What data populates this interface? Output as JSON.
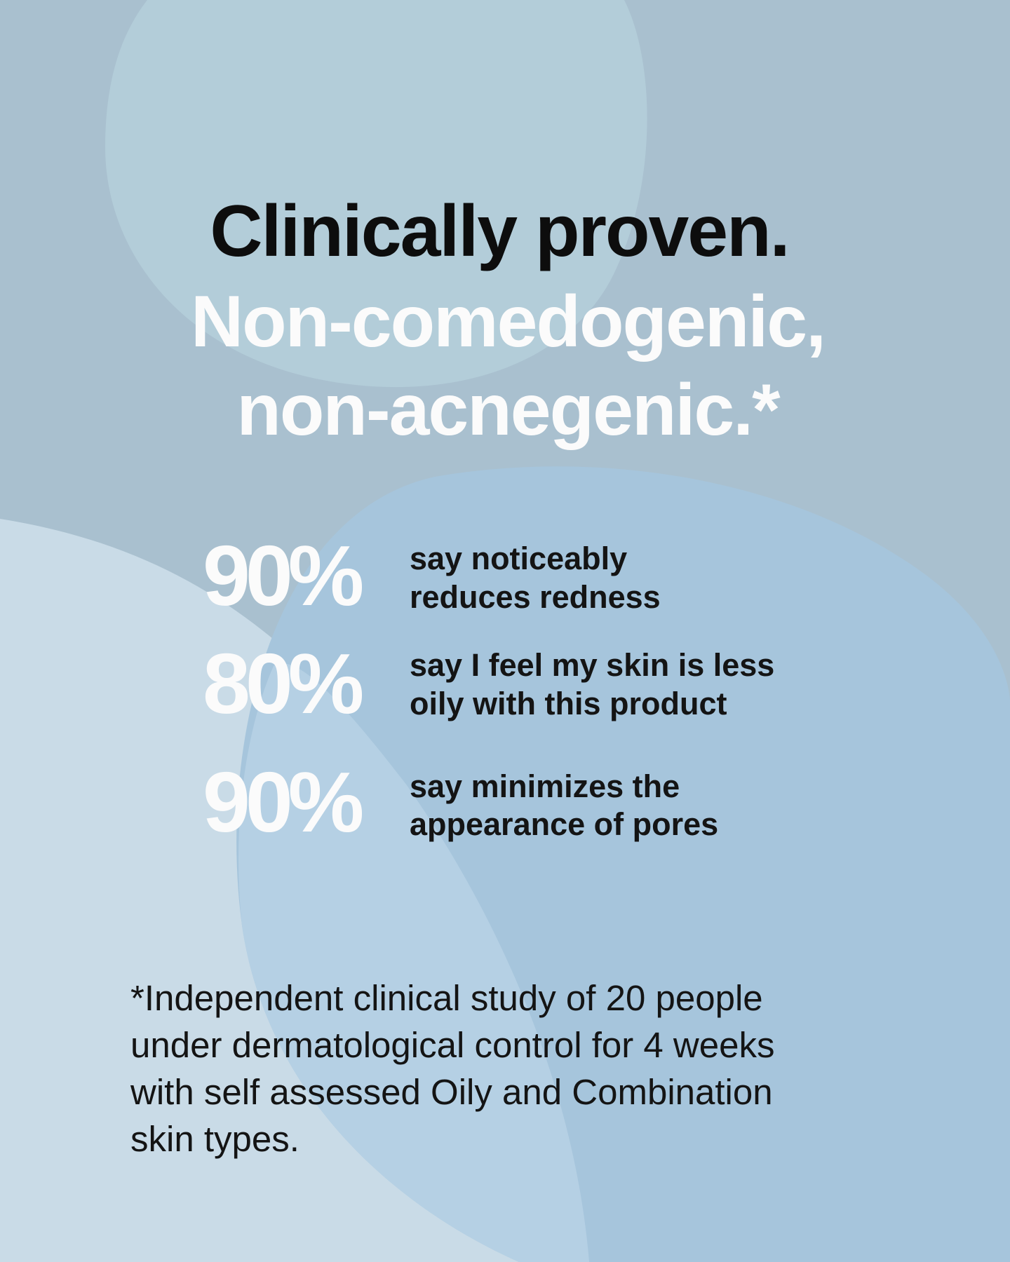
{
  "headline": {
    "line1": "Clinically proven.",
    "line2": "Non-comedogenic,",
    "line3": "non-acnegenic.*"
  },
  "stats": [
    {
      "value": "90%",
      "lines": [
        "say noticeably",
        "reduces redness"
      ]
    },
    {
      "value": "80%",
      "lines": [
        "say I feel my skin is less",
        "oily with this product"
      ]
    },
    {
      "value": "90%",
      "lines": [
        "say minimizes the",
        "appearance of pores"
      ]
    }
  ],
  "footnote": [
    "*Independent clinical study of 20 people",
    "under dermatological control for 4 weeks",
    "with self assessed Oily and Combination",
    "skin types."
  ]
}
